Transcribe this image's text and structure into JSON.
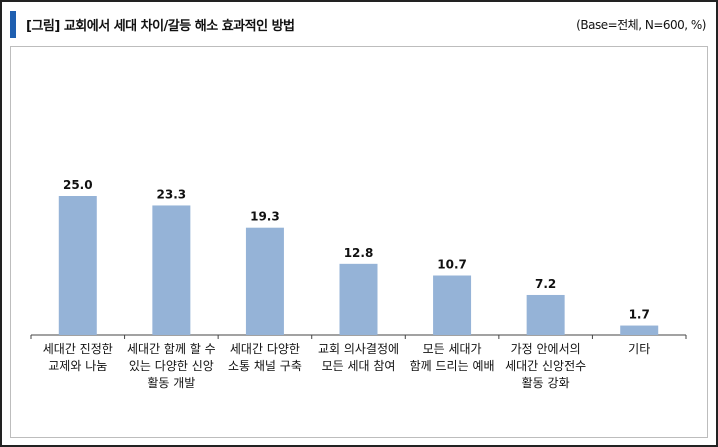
{
  "header": {
    "title": "[그림] 교회에서 세대 차이/갈등 해소 효과적인 방법",
    "base_note": "(Base=전체, N=600, %)"
  },
  "chart_data": {
    "type": "bar",
    "categories": [
      [
        "세대간 진정한",
        "교제와 나눔"
      ],
      [
        "세대간 함께 할 수",
        "있는 다양한 신앙",
        "활동 개발"
      ],
      [
        "세대간 다양한",
        "소통 채널 구축"
      ],
      [
        "교회 의사결정에",
        "모든 세대 참여"
      ],
      [
        "모든 세대가",
        "함께 드리는 예배"
      ],
      [
        "가정 안에서의",
        "세대간 신앙전수",
        "활동 강화"
      ],
      [
        "기타"
      ]
    ],
    "values": [
      25.0,
      23.3,
      19.3,
      12.8,
      10.7,
      7.2,
      1.7
    ],
    "value_labels": [
      "25.0",
      "23.3",
      "19.3",
      "12.8",
      "10.7",
      "7.2",
      "1.7"
    ],
    "ylim": [
      0,
      30
    ],
    "grid": false,
    "bar_color": "#95b3d7"
  }
}
